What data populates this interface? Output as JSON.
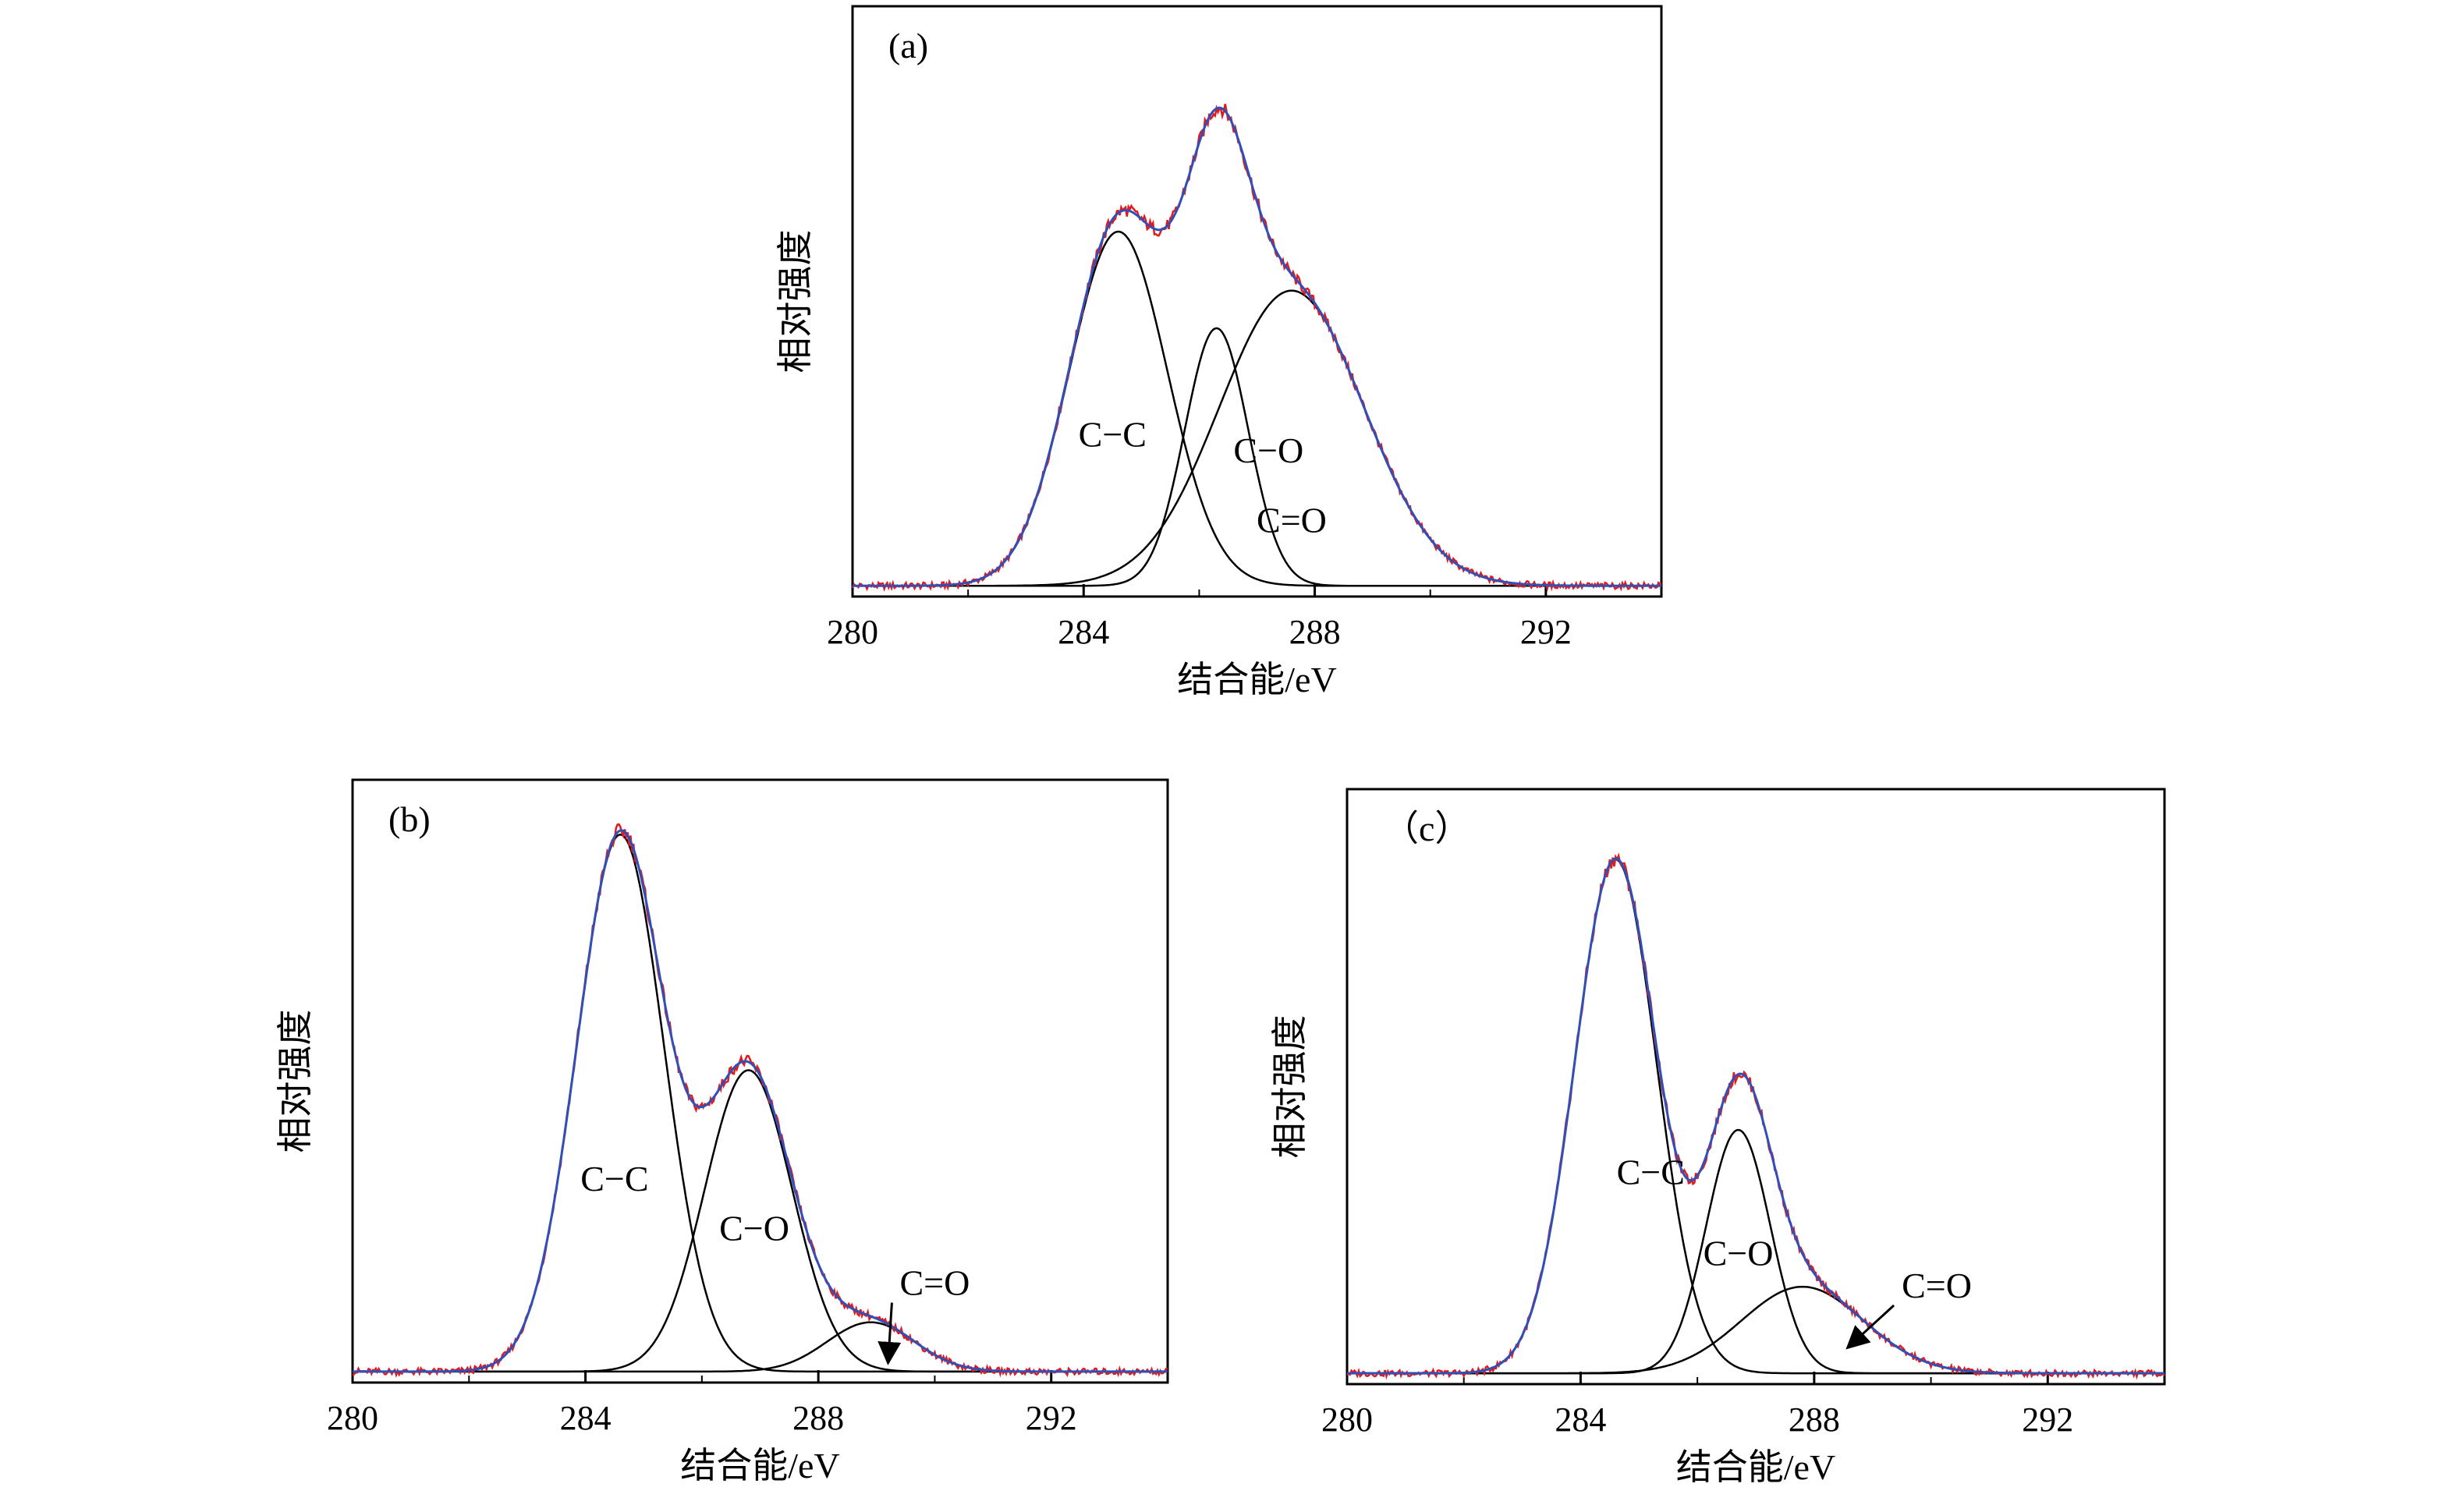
{
  "chart_data": [
    {
      "panel_label": "(a)",
      "type": "line",
      "xlabel": "结合能/eV",
      "ylabel": "相对强度",
      "xlim": [
        280,
        294
      ],
      "ylim": [
        0,
        1.1
      ],
      "x_ticks": [
        280,
        284,
        288,
        292
      ],
      "baseline": 0.02,
      "peaks": [
        {
          "name": "C−C",
          "center": 284.6,
          "height": 0.66,
          "sigma": 0.85
        },
        {
          "name": "C−O",
          "center": 286.3,
          "height": 0.48,
          "sigma": 0.55
        },
        {
          "name": "C=O",
          "center": 287.6,
          "height": 0.55,
          "sigma": 1.25
        }
      ],
      "annotations": [
        {
          "text": "C−C",
          "x": 284.5,
          "y": 0.28
        },
        {
          "text": "C−O",
          "x": 287.2,
          "y": 0.25
        },
        {
          "text": "C=O",
          "x": 287.6,
          "y": 0.12
        }
      ],
      "colors": {
        "measured": "#e31a1c",
        "fit": "#3050b8",
        "components": "#000000"
      }
    },
    {
      "panel_label": "(b)",
      "type": "line",
      "xlabel": "结合能/eV",
      "ylabel": "相对强度",
      "xlim": [
        280,
        294
      ],
      "ylim": [
        0,
        1.1
      ],
      "x_ticks": [
        280,
        284,
        288,
        292
      ],
      "baseline": 0.02,
      "peaks": [
        {
          "name": "C−C",
          "center": 284.6,
          "height": 0.98,
          "sigma": 0.75
        },
        {
          "name": "C−O",
          "center": 286.8,
          "height": 0.55,
          "sigma": 0.75
        },
        {
          "name": "C=O",
          "center": 288.9,
          "height": 0.09,
          "sigma": 0.75
        }
      ],
      "annotations": [
        {
          "text": "C−C",
          "x": 284.5,
          "y": 0.35
        },
        {
          "text": "C−O",
          "x": 286.9,
          "y": 0.26
        },
        {
          "text": "C=O",
          "x": 290.0,
          "y": 0.16,
          "arrow_to": [
            289.2,
            0.04
          ]
        }
      ],
      "colors": {
        "measured": "#e31a1c",
        "fit": "#3050b8",
        "components": "#000000"
      }
    },
    {
      "panel_label": "（c）",
      "type": "line",
      "xlabel": "结合能/eV",
      "ylabel": "相对强度",
      "xlim": [
        280,
        294
      ],
      "ylim": [
        0,
        1.1
      ],
      "x_ticks": [
        280,
        284,
        288,
        292
      ],
      "baseline": 0.02,
      "peaks": [
        {
          "name": "C−C",
          "center": 284.6,
          "height": 0.95,
          "sigma": 0.7
        },
        {
          "name": "C−O",
          "center": 286.7,
          "height": 0.45,
          "sigma": 0.55
        },
        {
          "name": "C=O",
          "center": 287.8,
          "height": 0.16,
          "sigma": 1.05
        }
      ],
      "annotations": [
        {
          "text": "C−C",
          "x": 285.2,
          "y": 0.37
        },
        {
          "text": "C−O",
          "x": 286.7,
          "y": 0.22
        },
        {
          "text": "C=O",
          "x": 290.1,
          "y": 0.16,
          "arrow_to": [
            288.6,
            0.07
          ]
        }
      ],
      "colors": {
        "measured": "#e31a1c",
        "fit": "#3050b8",
        "components": "#000000"
      }
    }
  ]
}
